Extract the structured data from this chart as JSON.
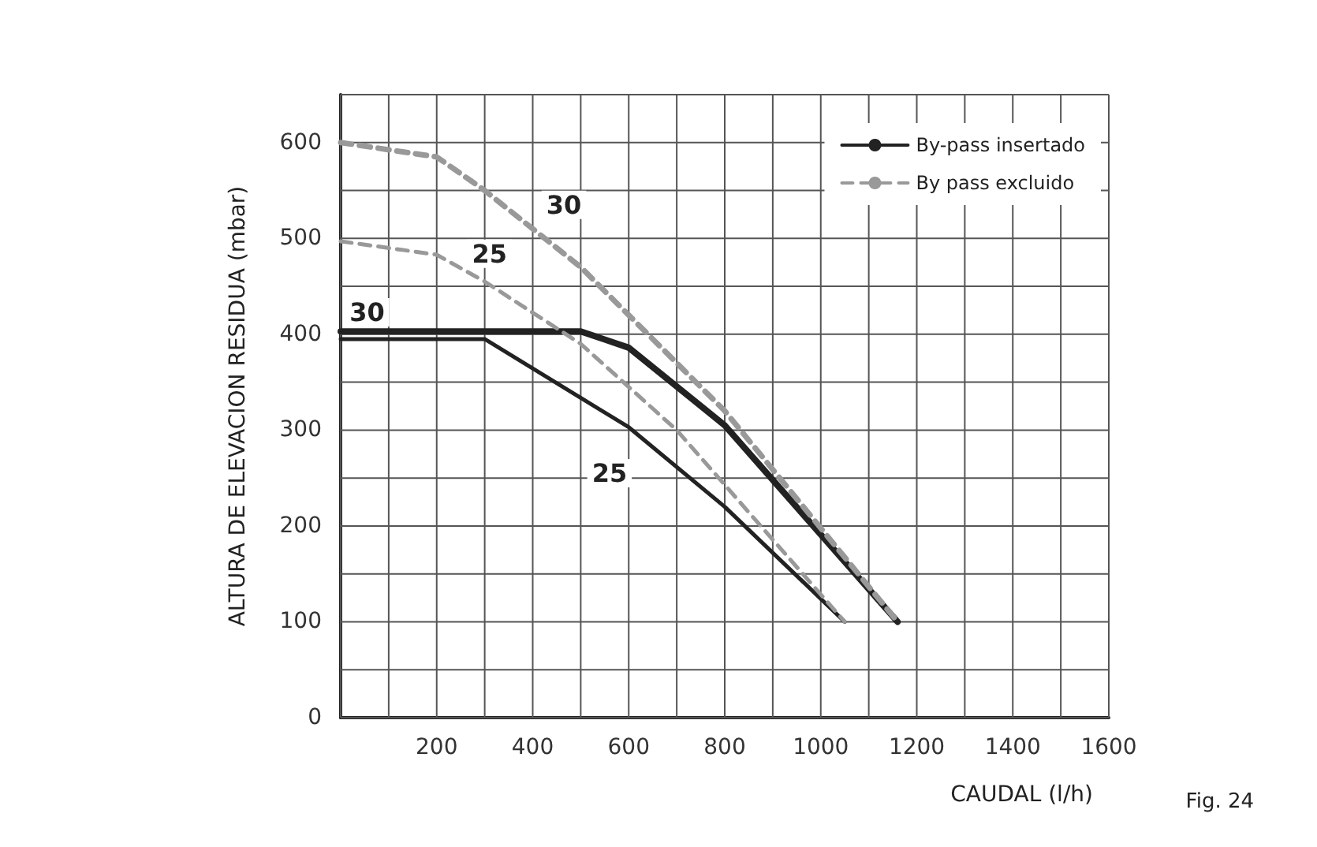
{
  "chart_data": {
    "type": "line",
    "xlabel": "CAUDAL (l/h)",
    "ylabel": "ALTURA DE ELEVACION RESIDUA (mbar)",
    "xlim": [
      0,
      1600
    ],
    "ylim": [
      0,
      650
    ],
    "xticks": [
      {
        "value": 0,
        "label": null
      },
      {
        "value": 100,
        "label": null
      },
      200,
      {
        "value": 300,
        "label": null
      },
      400,
      {
        "value": 500,
        "label": null
      },
      600,
      {
        "value": 700,
        "label": null
      },
      800,
      {
        "value": 900,
        "label": null
      },
      1000,
      {
        "value": 1100,
        "label": null
      },
      1200,
      {
        "value": 1300,
        "label": null
      },
      1400,
      {
        "value": 1500,
        "label": null
      },
      1600
    ],
    "yticks": [
      0,
      {
        "value": 50,
        "label": null
      },
      100,
      {
        "value": 150,
        "label": null
      },
      200,
      {
        "value": 250,
        "label": null
      },
      300,
      {
        "value": 350,
        "label": null
      },
      400,
      {
        "value": 450,
        "label": null
      },
      500,
      {
        "value": 550,
        "label": null
      },
      600,
      {
        "value": 650,
        "label": null
      }
    ],
    "grid": true,
    "legend": "top right",
    "marker": "none",
    "series": [
      {
        "name": "By-pass insertado",
        "color": "#222222",
        "line_style": "solid",
        "x": [
          0,
          500,
          600,
          800,
          1160
        ],
        "values": [
          403,
          403,
          386,
          305,
          100
        ]
      },
      {
        "color": "#222222",
        "line_style": "solid",
        "x": [
          0,
          300,
          600,
          800,
          1050
        ],
        "values": [
          395,
          395,
          303,
          220,
          100
        ]
      },
      {
        "name": "By pass excluido",
        "color": "#999999",
        "line_style": "dashed",
        "x": [
          0,
          200,
          300,
          500,
          800,
          1160
        ],
        "values": [
          600,
          585,
          550,
          470,
          320,
          100
        ]
      },
      {
        "color": "#999999",
        "line_style": "dashed",
        "x": [
          0,
          200,
          300,
          500,
          700,
          1050
        ],
        "values": [
          497,
          483,
          455,
          390,
          300,
          100
        ]
      }
    ],
    "annotations": [
      {
        "text": "30",
        "x": 465,
        "y": 535
      },
      {
        "text": "25",
        "x": 310,
        "y": 484
      },
      {
        "text": "30",
        "x": 55,
        "y": 423
      },
      {
        "text": "25",
        "x": 560,
        "y": 255
      },
      "Fig. 24"
    ]
  }
}
